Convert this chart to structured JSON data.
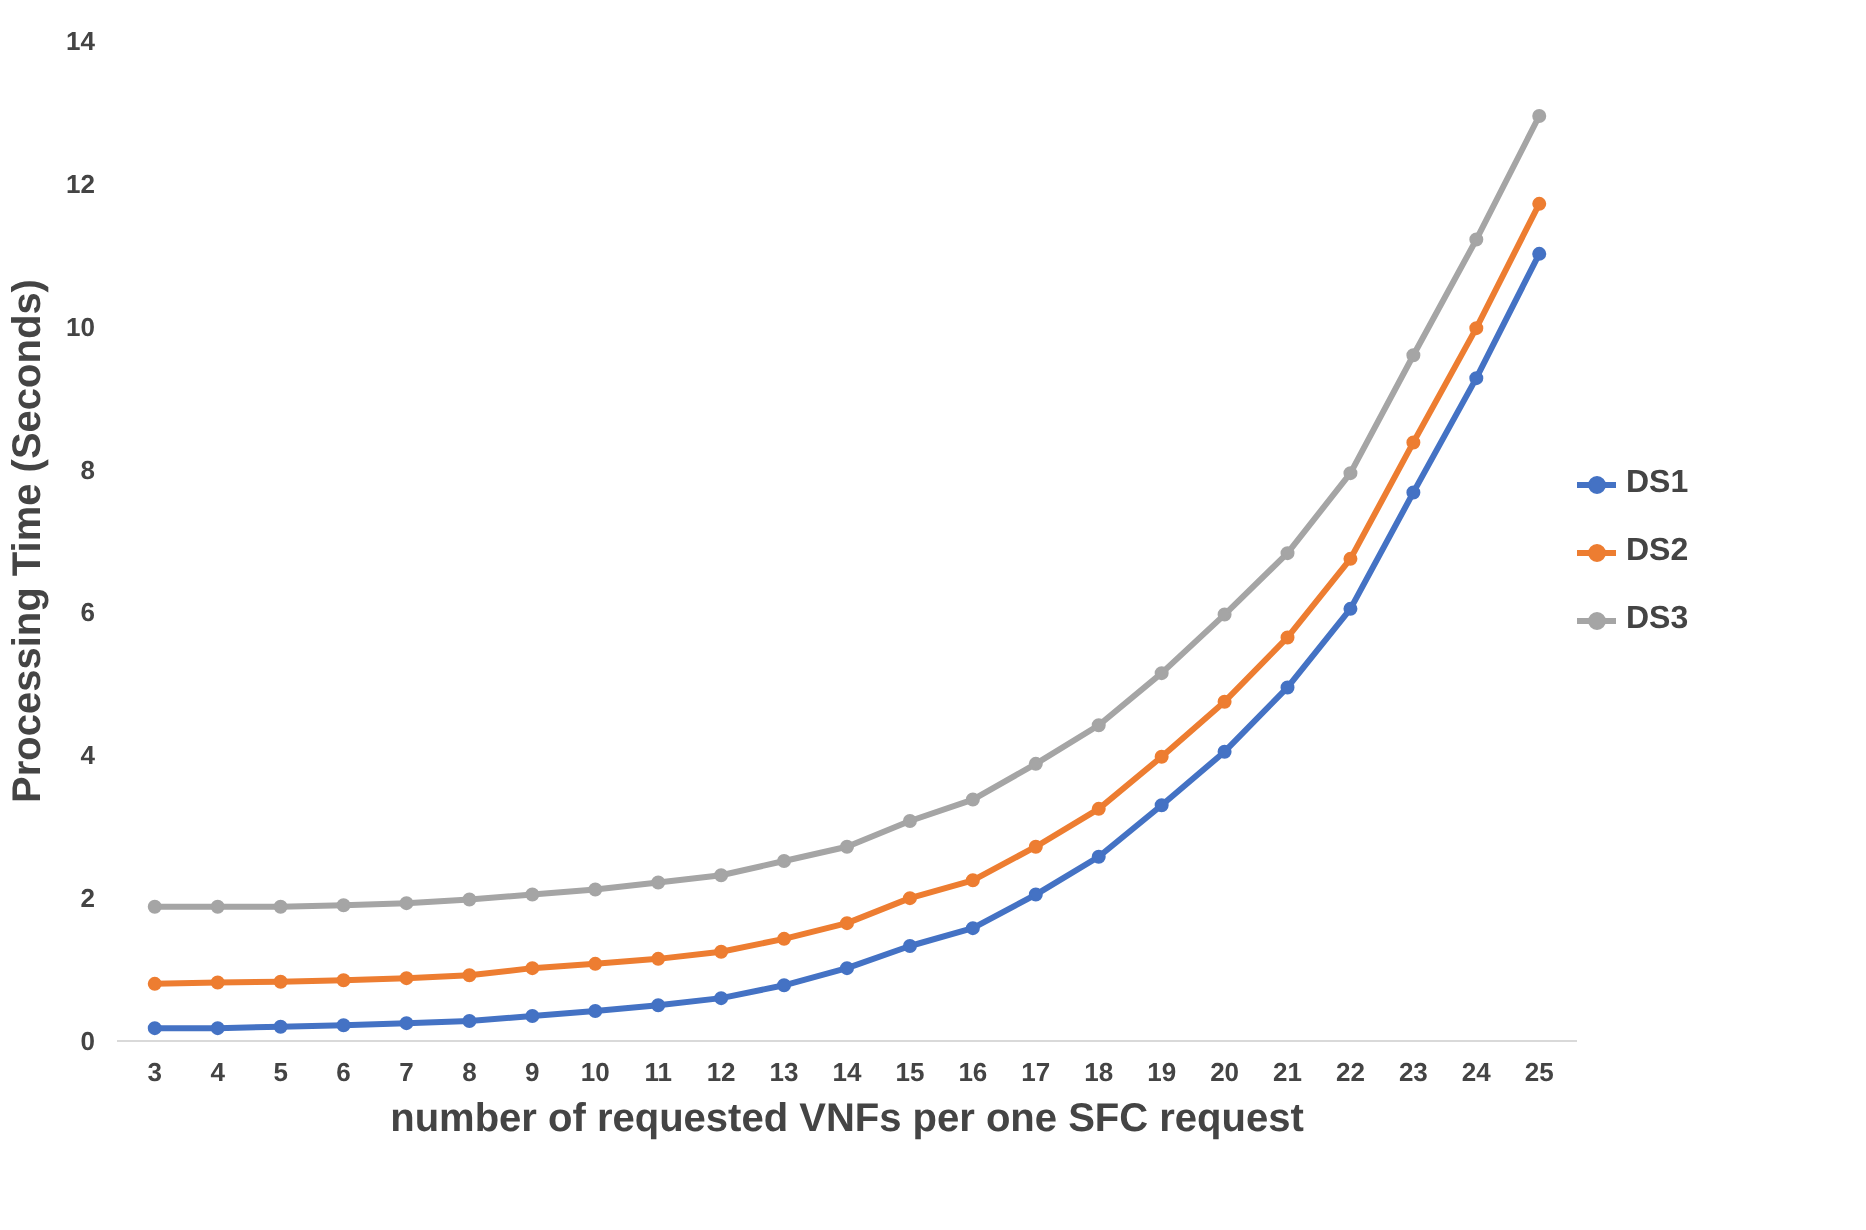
{
  "chart_data": {
    "type": "line",
    "xlabel": "number of requested VNFs per one SFC request",
    "ylabel": "Processing Time (Seconds)",
    "categories": [
      "3",
      "4",
      "5",
      "6",
      "7",
      "8",
      "9",
      "10",
      "11",
      "12",
      "13",
      "14",
      "15",
      "16",
      "17",
      "18",
      "19",
      "20",
      "21",
      "22",
      "23",
      "24",
      "25"
    ],
    "series": [
      {
        "name": "DS1",
        "color": "#4472c4",
        "values": [
          0.18,
          0.18,
          0.2,
          0.22,
          0.25,
          0.28,
          0.35,
          0.42,
          0.5,
          0.6,
          0.78,
          1.02,
          1.33,
          1.58,
          2.05,
          2.58,
          3.3,
          4.05,
          4.95,
          6.05,
          7.68,
          9.28,
          11.02
        ]
      },
      {
        "name": "DS2",
        "color": "#ed7d31",
        "values": [
          0.8,
          0.82,
          0.83,
          0.85,
          0.88,
          0.92,
          1.02,
          1.08,
          1.15,
          1.25,
          1.43,
          1.65,
          2.0,
          2.25,
          2.72,
          3.25,
          3.98,
          4.75,
          5.65,
          6.75,
          8.38,
          9.98,
          11.72
        ]
      },
      {
        "name": "DS3",
        "color": "#a5a5a5",
        "values": [
          1.88,
          1.88,
          1.88,
          1.9,
          1.93,
          1.98,
          2.05,
          2.12,
          2.22,
          2.32,
          2.52,
          2.72,
          3.08,
          3.38,
          3.88,
          4.42,
          5.15,
          5.97,
          6.83,
          7.95,
          9.6,
          11.22,
          12.95
        ]
      }
    ],
    "ylim": [
      0,
      14
    ],
    "yticks": [
      0,
      2,
      4,
      6,
      8,
      10,
      12,
      14
    ],
    "grid": false,
    "legend": "right",
    "marker": "circle",
    "line_style": "solid"
  }
}
